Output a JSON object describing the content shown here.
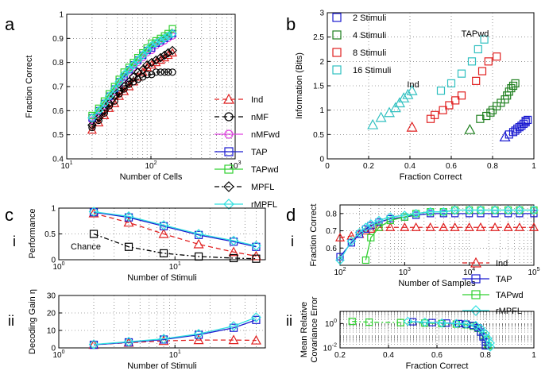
{
  "panels": {
    "a": "a",
    "b": "b",
    "c": "c",
    "d": "d",
    "c_i": "i",
    "c_ii": "ii",
    "d_i": "i",
    "d_ii": "ii"
  },
  "colors": {
    "Ind": "#e02020",
    "nMF": "#000000",
    "nMFwd": "#e040e0",
    "TAP": "#1a1ad0",
    "TAPwd": "#30d030",
    "MPFL": "#000000",
    "rMPFL": "#30e0e0",
    "Chance": "#000000"
  },
  "chart_data": [
    {
      "id": "a",
      "type": "line",
      "xscale": "log",
      "xlabel": "Number of Cells",
      "ylabel": "Fraction Correct",
      "xlim": [
        10,
        1000
      ],
      "ylim": [
        0.4,
        1
      ],
      "xticks": [
        10,
        100,
        1000
      ],
      "xtick_labels": [
        "10^1",
        "10^2",
        "10^3"
      ],
      "yticks": [
        0.4,
        0.5,
        0.6,
        0.7,
        0.8,
        0.9,
        1
      ],
      "ytick_labels": [
        "0.4",
        "0.5",
        "0.6",
        "0.7",
        "0.8",
        "0.9",
        "1"
      ],
      "x": [
        20,
        24,
        28,
        32,
        37,
        42,
        48,
        55,
        62,
        70,
        80,
        90,
        102,
        115,
        130,
        145,
        160,
        180
      ],
      "series": [
        {
          "name": "Ind",
          "marker": "triangle",
          "dash": "6,4",
          "values": [
            0.52,
            0.55,
            0.58,
            0.61,
            0.63,
            0.66,
            0.68,
            0.7,
            0.72,
            0.74,
            0.76,
            0.78,
            0.79,
            0.8,
            0.81,
            0.82,
            0.83,
            0.84
          ]
        },
        {
          "name": "nMF",
          "marker": "circle",
          "dash": "6,4",
          "values": [
            0.53,
            0.56,
            0.59,
            0.62,
            0.64,
            0.67,
            0.69,
            0.71,
            0.72,
            0.73,
            0.74,
            0.75,
            0.75,
            0.76,
            0.76,
            0.76,
            0.76,
            0.76
          ]
        },
        {
          "name": "nMFwd",
          "marker": "circle",
          "dash": "",
          "values": [
            0.56,
            0.59,
            0.62,
            0.65,
            0.68,
            0.71,
            0.73,
            0.76,
            0.78,
            0.8,
            0.82,
            0.84,
            0.85,
            0.87,
            0.88,
            0.89,
            0.9,
            0.91
          ]
        },
        {
          "name": "TAP",
          "marker": "square",
          "dash": "",
          "values": [
            0.57,
            0.6,
            0.63,
            0.66,
            0.69,
            0.72,
            0.74,
            0.77,
            0.79,
            0.81,
            0.83,
            0.85,
            0.86,
            0.88,
            0.89,
            0.9,
            0.91,
            0.92
          ]
        },
        {
          "name": "TAPwd",
          "marker": "square",
          "dash": "",
          "values": [
            0.58,
            0.61,
            0.64,
            0.67,
            0.7,
            0.73,
            0.76,
            0.78,
            0.8,
            0.82,
            0.84,
            0.86,
            0.88,
            0.89,
            0.9,
            0.91,
            0.92,
            0.94
          ]
        },
        {
          "name": "MPFL",
          "marker": "diamond",
          "dash": "6,3,2,3",
          "values": [
            0.54,
            0.57,
            0.6,
            0.63,
            0.66,
            0.68,
            0.7,
            0.72,
            0.74,
            0.76,
            0.77,
            0.79,
            0.8,
            0.81,
            0.82,
            0.83,
            0.84,
            0.85
          ]
        },
        {
          "name": "rMPFL",
          "marker": "diamond",
          "dash": "",
          "values": [
            0.57,
            0.6,
            0.63,
            0.66,
            0.69,
            0.72,
            0.75,
            0.77,
            0.79,
            0.81,
            0.83,
            0.85,
            0.87,
            0.88,
            0.89,
            0.9,
            0.91,
            0.92
          ]
        }
      ],
      "legend_position": "bottom-right outside",
      "legend": [
        "Ind",
        "nMF",
        "nMFwd",
        "TAP",
        "TAPwd",
        "MPFL",
        "rMPFL"
      ]
    },
    {
      "id": "b",
      "type": "scatter",
      "xlabel": "Fraction Correct",
      "ylabel": "Information (Bits)",
      "xlim": [
        0,
        1
      ],
      "ylim": [
        0,
        3
      ],
      "xticks": [
        0,
        0.2,
        0.4,
        0.6,
        0.8,
        1
      ],
      "xtick_labels": [
        "0",
        "0.2",
        "0.4",
        "0.6",
        "0.8",
        "1"
      ],
      "yticks": [
        0,
        0.5,
        1,
        1.5,
        2,
        2.5,
        3
      ],
      "ytick_labels": [
        "0",
        "0.5",
        "1",
        "1.5",
        "2",
        "2.5",
        "3"
      ],
      "legend": [
        "2 Stimuli",
        "4 Stimuli",
        "8 Stimuli",
        "16 Stimuli"
      ],
      "annotations": [
        "TAPwd",
        "Ind"
      ],
      "series": [
        {
          "name": "2 Stimuli",
          "color": "#1a1ad0",
          "marker": "square",
          "x": [
            0.88,
            0.9,
            0.91,
            0.92,
            0.93,
            0.94,
            0.95,
            0.96,
            0.96,
            0.97
          ],
          "y": [
            0.5,
            0.55,
            0.58,
            0.62,
            0.65,
            0.68,
            0.72,
            0.75,
            0.78,
            0.8
          ],
          "open_marker": "triangle",
          "open_point": [
            0.86,
            0.45
          ]
        },
        {
          "name": "4 Stimuli",
          "color": "#208020",
          "marker": "square",
          "x": [
            0.74,
            0.77,
            0.79,
            0.8,
            0.82,
            0.84,
            0.86,
            0.87,
            0.88,
            0.89,
            0.9,
            0.91
          ],
          "y": [
            0.82,
            0.88,
            0.95,
            1.0,
            1.08,
            1.15,
            1.22,
            1.3,
            1.38,
            1.45,
            1.5,
            1.55
          ],
          "open_marker": "triangle",
          "open_point": [
            0.69,
            0.6
          ]
        },
        {
          "name": "8 Stimuli",
          "color": "#e02020",
          "marker": "square",
          "x": [
            0.5,
            0.52,
            0.56,
            0.59,
            0.62,
            0.65,
            0.72,
            0.75,
            0.78,
            0.82
          ],
          "y": [
            0.82,
            0.9,
            1.0,
            1.1,
            1.2,
            1.3,
            1.6,
            1.8,
            2.0,
            2.1
          ],
          "open_marker": "triangle",
          "open_point": [
            0.41,
            0.65
          ]
        },
        {
          "name": "16 Stimuli",
          "color": "#30c0c0",
          "marker": "square",
          "x": [
            0.55,
            0.6,
            0.65,
            0.7,
            0.73,
            0.76
          ],
          "y": [
            1.4,
            1.55,
            1.75,
            2.0,
            2.25,
            2.45
          ],
          "triangles_x": [
            0.22,
            0.26,
            0.3,
            0.33,
            0.35,
            0.37,
            0.39,
            0.41
          ],
          "triangles_y": [
            0.7,
            0.85,
            0.95,
            1.05,
            1.15,
            1.25,
            1.32,
            1.4
          ]
        }
      ]
    },
    {
      "id": "c_i",
      "type": "line",
      "xscale": "log",
      "xlabel": "Number of Stimuli",
      "ylabel": "Performance",
      "xlim": [
        1,
        60
      ],
      "ylim": [
        0,
        1
      ],
      "xticks": [
        1,
        10
      ],
      "xtick_labels": [
        "10^0",
        "10^1"
      ],
      "yticks": [
        0,
        0.5,
        1
      ],
      "ytick_labels": [
        "0",
        "0.5",
        "1"
      ],
      "x": [
        2,
        4,
        8,
        16,
        32,
        50
      ],
      "annotations": [
        "Chance"
      ],
      "series": [
        {
          "name": "Ind",
          "marker": "triangle",
          "dash": "6,4",
          "values": [
            0.9,
            0.72,
            0.5,
            0.3,
            0.15,
            0.07
          ]
        },
        {
          "name": "TAP",
          "marker": "square",
          "dash": "",
          "values": [
            0.92,
            0.82,
            0.65,
            0.48,
            0.35,
            0.25
          ]
        },
        {
          "name": "rMPFL",
          "marker": "diamond",
          "dash": "",
          "values": [
            0.93,
            0.84,
            0.67,
            0.5,
            0.37,
            0.27
          ]
        },
        {
          "name": "Chance",
          "marker": "square",
          "dash": "6,3,2,3",
          "values": [
            0.5,
            0.25,
            0.125,
            0.0625,
            0.031,
            0.02
          ]
        }
      ]
    },
    {
      "id": "c_ii",
      "type": "line",
      "xscale": "log",
      "xlabel": "Number of Stimuli",
      "ylabel": "Decoding Gain η",
      "xlim": [
        1,
        60
      ],
      "ylim": [
        0,
        30
      ],
      "xticks": [
        1,
        10
      ],
      "xtick_labels": [
        "10^0",
        "10^1"
      ],
      "yticks": [
        0,
        10,
        20,
        30
      ],
      "ytick_labels": [
        "0",
        "10",
        "20",
        "30"
      ],
      "x": [
        2,
        4,
        8,
        16,
        32,
        50
      ],
      "series": [
        {
          "name": "Ind",
          "marker": "triangle",
          "dash": "6,4",
          "values": [
            1.8,
            3.0,
            4.0,
            4.5,
            4.5,
            4.3
          ]
        },
        {
          "name": "TAP",
          "marker": "square",
          "dash": "",
          "values": [
            1.8,
            3.2,
            4.8,
            7.5,
            11.5,
            16
          ]
        },
        {
          "name": "rMPFL",
          "marker": "diamond",
          "dash": "",
          "values": [
            2.0,
            3.5,
            5.2,
            8.0,
            12.5,
            17.5
          ]
        }
      ]
    },
    {
      "id": "d_i",
      "type": "line",
      "xscale": "log",
      "xlabel": "Number of Samples",
      "ylabel": "Fraction Correct",
      "xlim": [
        100,
        100000
      ],
      "ylim": [
        0.5,
        0.85
      ],
      "xticks": [
        100,
        1000,
        10000,
        100000
      ],
      "xtick_labels": [
        "10^2",
        "10^3",
        "10^4",
        "10^5"
      ],
      "yticks": [
        0.6,
        0.7,
        0.8
      ],
      "ytick_labels": [
        "0.6",
        "0.7",
        "0.8"
      ],
      "series": [
        {
          "name": "Ind",
          "marker": "triangle",
          "dash": "6,4",
          "x": [
            100,
            150,
            200,
            250,
            300,
            400,
            600,
            1000,
            1500,
            2500,
            4000,
            6000,
            10000,
            15000,
            25000,
            40000,
            60000,
            100000
          ],
          "values": [
            0.66,
            0.67,
            0.68,
            0.7,
            0.71,
            0.72,
            0.72,
            0.72,
            0.72,
            0.72,
            0.72,
            0.72,
            0.72,
            0.72,
            0.72,
            0.72,
            0.72,
            0.72
          ]
        },
        {
          "name": "TAP",
          "marker": "square",
          "dash": "",
          "x": [
            100,
            150,
            200,
            250,
            300,
            400,
            600,
            1000,
            1500,
            2500,
            4000,
            6000,
            10000,
            15000,
            25000,
            40000,
            60000,
            100000
          ],
          "values": [
            0.55,
            0.63,
            0.68,
            0.71,
            0.73,
            0.75,
            0.77,
            0.78,
            0.79,
            0.8,
            0.8,
            0.8,
            0.8,
            0.8,
            0.8,
            0.8,
            0.8,
            0.8
          ]
        },
        {
          "name": "TAPwd",
          "marker": "square",
          "dash": "",
          "x": [
            250,
            300,
            400,
            600,
            1000,
            1500,
            2500,
            4000,
            6000,
            10000,
            15000,
            25000,
            40000,
            60000,
            100000
          ],
          "values": [
            0.53,
            0.66,
            0.72,
            0.76,
            0.78,
            0.8,
            0.81,
            0.81,
            0.82,
            0.82,
            0.82,
            0.82,
            0.82,
            0.82,
            0.82
          ]
        },
        {
          "name": "rMPFL",
          "marker": "diamond",
          "dash": "",
          "x": [
            100,
            150,
            200,
            250,
            300,
            400,
            600,
            1000,
            1500,
            2500,
            4000,
            6000,
            10000,
            15000,
            25000,
            40000,
            60000,
            100000
          ],
          "values": [
            0.53,
            0.64,
            0.69,
            0.72,
            0.74,
            0.76,
            0.78,
            0.79,
            0.8,
            0.81,
            0.81,
            0.82,
            0.82,
            0.82,
            0.82,
            0.82,
            0.82,
            0.82
          ]
        }
      ],
      "legend": [
        "Ind",
        "TAP",
        "TAPwd",
        "rMPFL"
      ]
    },
    {
      "id": "d_ii",
      "type": "line",
      "yscale": "log",
      "xlabel": "Fraction Correct",
      "ylabel": "Mean Relative Covariance Error",
      "xlim": [
        0.2,
        1
      ],
      "ylim": [
        0.01,
        10
      ],
      "xticks": [
        0.2,
        0.4,
        0.6,
        0.8,
        1
      ],
      "xtick_labels": [
        "0.2",
        "0.4",
        "0.6",
        "0.8",
        "1"
      ],
      "yticks": [
        0.01,
        1
      ],
      "ytick_labels": [
        "10^-2",
        "10^0"
      ],
      "series": [
        {
          "name": "TAPwd",
          "marker": "square",
          "dash": "6,3,2,3",
          "x": [
            0.25,
            0.32,
            0.45,
            0.55,
            0.62,
            0.68,
            0.72,
            0.75,
            0.77,
            0.78,
            0.79,
            0.8,
            0.8,
            0.81
          ],
          "values": [
            1.5,
            1.3,
            1.2,
            1.1,
            1.0,
            0.9,
            0.8,
            0.6,
            0.4,
            0.2,
            0.1,
            0.05,
            0.03,
            0.015
          ]
        },
        {
          "name": "TAP",
          "marker": "square",
          "dash": "",
          "x": [
            0.5,
            0.58,
            0.64,
            0.69,
            0.72,
            0.75,
            0.77,
            0.78,
            0.79,
            0.8,
            0.8
          ],
          "values": [
            1.4,
            1.2,
            1.1,
            1.0,
            0.9,
            0.7,
            0.45,
            0.2,
            0.08,
            0.03,
            0.015
          ]
        },
        {
          "name": "rMPFL",
          "marker": "diamond",
          "dash": "",
          "x": [
            0.48,
            0.55,
            0.62,
            0.68,
            0.72,
            0.76,
            0.78,
            0.8,
            0.81,
            0.82,
            0.82
          ],
          "values": [
            1.5,
            1.3,
            1.1,
            1.0,
            0.9,
            0.7,
            0.4,
            0.15,
            0.06,
            0.025,
            0.012
          ]
        }
      ]
    }
  ]
}
